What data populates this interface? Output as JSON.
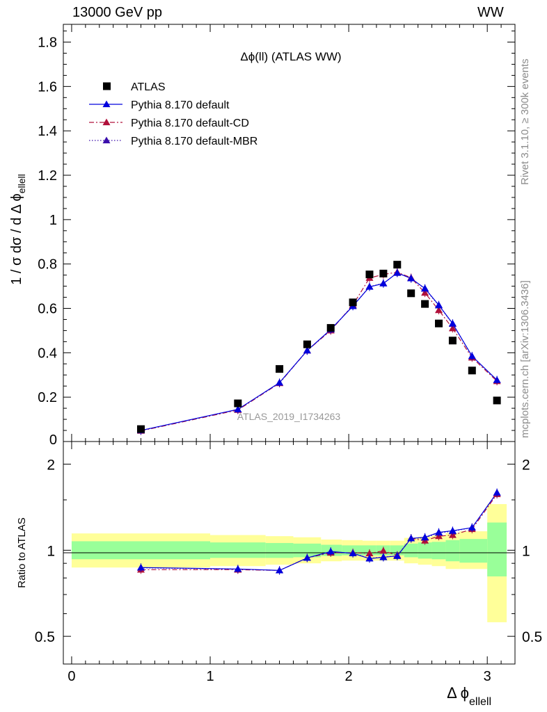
{
  "header": {
    "left": "13000 GeV pp",
    "right": "WW"
  },
  "side_labels": {
    "rivet": "Rivet 3.1.10, ≥ 300k events",
    "mcplots": "mcplots.cern.ch [arXiv:1306.3436]"
  },
  "chart_data": [
    {
      "type": "scatter",
      "title": "Δϕ(ll) (ATLAS WW)",
      "ylabel_main": "1 / σ  dσ / d Δ ϕ",
      "ylabel_sub": "ellell",
      "watermark": "ATLAS_2019_I1734263",
      "xlim": [
        -0.06,
        3.2
      ],
      "ylim": [
        0,
        1.88
      ],
      "y_ticks": [
        0.2,
        0.4,
        0.6,
        0.8,
        1,
        1.2,
        1.4,
        1.6,
        1.8
      ],
      "y_tick_labels": [
        "0.2",
        "0.4",
        "0.6",
        "0.8",
        "1",
        "1.2",
        "1.4",
        "1.6",
        "1.8"
      ],
      "y_bottom_label": "0",
      "legend_position": "top-left",
      "series": [
        {
          "name": "ATLAS",
          "color": "#000000",
          "marker": "square",
          "x": [
            0.5,
            1.2,
            1.5,
            1.7,
            1.87,
            2.03,
            2.15,
            2.25,
            2.35,
            2.45,
            2.55,
            2.65,
            2.75,
            2.89,
            3.07
          ],
          "y": [
            0.056,
            0.172,
            0.327,
            0.438,
            0.512,
            0.627,
            0.753,
            0.757,
            0.797,
            0.668,
            0.62,
            0.532,
            0.455,
            0.32,
            0.185
          ]
        },
        {
          "name": "Pythia 8.170 default",
          "color": "#0000dd",
          "marker": "triangle",
          "line": "solid",
          "x": [
            0.5,
            1.2,
            1.5,
            1.7,
            1.87,
            2.03,
            2.15,
            2.25,
            2.35,
            2.45,
            2.55,
            2.65,
            2.75,
            2.89,
            3.07
          ],
          "y": [
            0.05,
            0.145,
            0.265,
            0.41,
            0.505,
            0.61,
            0.697,
            0.712,
            0.76,
            0.735,
            0.69,
            0.615,
            0.532,
            0.385,
            0.277
          ]
        },
        {
          "name": "Pythia 8.170 default-CD",
          "color": "#b0103a",
          "marker": "triangle",
          "line": "dashdot",
          "x": [
            0.5,
            1.2,
            1.5,
            1.7,
            1.87,
            2.03,
            2.15,
            2.25,
            2.35,
            2.45,
            2.55,
            2.65,
            2.75,
            2.89,
            3.07
          ],
          "y": [
            0.048,
            0.142,
            0.263,
            0.41,
            0.5,
            0.615,
            0.737,
            0.753,
            0.763,
            0.738,
            0.67,
            0.592,
            0.51,
            0.378,
            0.272
          ]
        },
        {
          "name": "Pythia 8.170 default-MBR",
          "color": "#3a0dab",
          "marker": "triangle",
          "line": "dotted",
          "x": [
            0.5,
            1.2,
            1.5,
            1.7,
            1.87,
            2.03,
            2.15,
            2.25,
            2.35,
            2.45,
            2.55,
            2.65,
            2.75,
            2.89,
            3.07
          ],
          "y": [
            0.05,
            0.144,
            0.265,
            0.41,
            0.503,
            0.612,
            0.698,
            0.713,
            0.76,
            0.735,
            0.688,
            0.613,
            0.53,
            0.384,
            0.276
          ]
        }
      ]
    },
    {
      "type": "scatter",
      "ylabel": "Ratio to ATLAS",
      "xlabel_main": "Δ ϕ",
      "xlabel_sub": "ellell",
      "xlim": [
        -0.06,
        3.2
      ],
      "ylim": [
        0.4,
        2.4
      ],
      "y_scale": "log",
      "x_ticks": [
        0,
        1,
        2,
        3
      ],
      "x_tick_labels": [
        "0",
        "1",
        "2",
        "3"
      ],
      "y_ticks": [
        0.5,
        1,
        2
      ],
      "y_tick_labels": [
        "0.5",
        "1",
        "2"
      ],
      "bands": {
        "x_edges": [
          0,
          1,
          1.4,
          1.6,
          1.8,
          1.95,
          2.1,
          2.2,
          2.3,
          2.4,
          2.5,
          2.6,
          2.7,
          2.8,
          3.0,
          3.14
        ],
        "inner_low": [
          0.93,
          0.94,
          0.94,
          0.945,
          0.955,
          0.96,
          0.96,
          0.96,
          0.96,
          0.945,
          0.935,
          0.93,
          0.915,
          0.905,
          0.81
        ],
        "inner_high": [
          1.075,
          1.065,
          1.06,
          1.055,
          1.045,
          1.04,
          1.04,
          1.04,
          1.04,
          1.055,
          1.065,
          1.07,
          1.085,
          1.095,
          1.25
        ],
        "outer_low": [
          0.87,
          0.88,
          0.89,
          0.9,
          0.915,
          0.92,
          0.92,
          0.92,
          0.92,
          0.9,
          0.89,
          0.88,
          0.86,
          0.86,
          0.56
        ],
        "outer_high": [
          1.145,
          1.13,
          1.12,
          1.11,
          1.09,
          1.085,
          1.08,
          1.08,
          1.08,
          1.105,
          1.115,
          1.125,
          1.15,
          1.165,
          1.45
        ],
        "inner_color": "#99ff99",
        "outer_color": "#ffff99"
      },
      "series": [
        {
          "name": "Pythia 8.170 default",
          "color": "#0000dd",
          "marker": "triangle",
          "line": "solid",
          "x": [
            0.5,
            1.2,
            1.5,
            1.7,
            1.87,
            2.03,
            2.15,
            2.25,
            2.35,
            2.45,
            2.55,
            2.65,
            2.75,
            2.89,
            3.07
          ],
          "y": [
            0.87,
            0.86,
            0.85,
            0.94,
            0.99,
            0.975,
            0.935,
            0.945,
            0.955,
            1.1,
            1.11,
            1.155,
            1.17,
            1.2,
            1.59
          ]
        },
        {
          "name": "Pythia 8.170 default-CD",
          "color": "#b0103a",
          "marker": "triangle",
          "line": "dashdot",
          "x": [
            0.5,
            1.2,
            1.5,
            1.7,
            1.87,
            2.03,
            2.15,
            2.25,
            2.35,
            2.45,
            2.55,
            2.65,
            2.75,
            2.89,
            3.07
          ],
          "y": [
            0.855,
            0.855,
            0.85,
            0.94,
            0.98,
            0.98,
            0.975,
            0.995,
            0.96,
            1.1,
            1.08,
            1.12,
            1.13,
            1.185,
            1.57
          ]
        },
        {
          "name": "Pythia 8.170 default-MBR",
          "color": "#3a0dab",
          "marker": "triangle",
          "line": "dotted",
          "x": [
            0.5,
            1.2,
            1.5,
            1.7,
            1.87,
            2.03,
            2.15,
            2.25,
            2.35,
            2.45,
            2.55,
            2.65,
            2.75,
            2.89,
            3.07
          ],
          "y": [
            0.868,
            0.858,
            0.85,
            0.94,
            0.988,
            0.976,
            0.937,
            0.947,
            0.955,
            1.1,
            1.105,
            1.15,
            1.165,
            1.2,
            1.585
          ]
        }
      ]
    }
  ]
}
